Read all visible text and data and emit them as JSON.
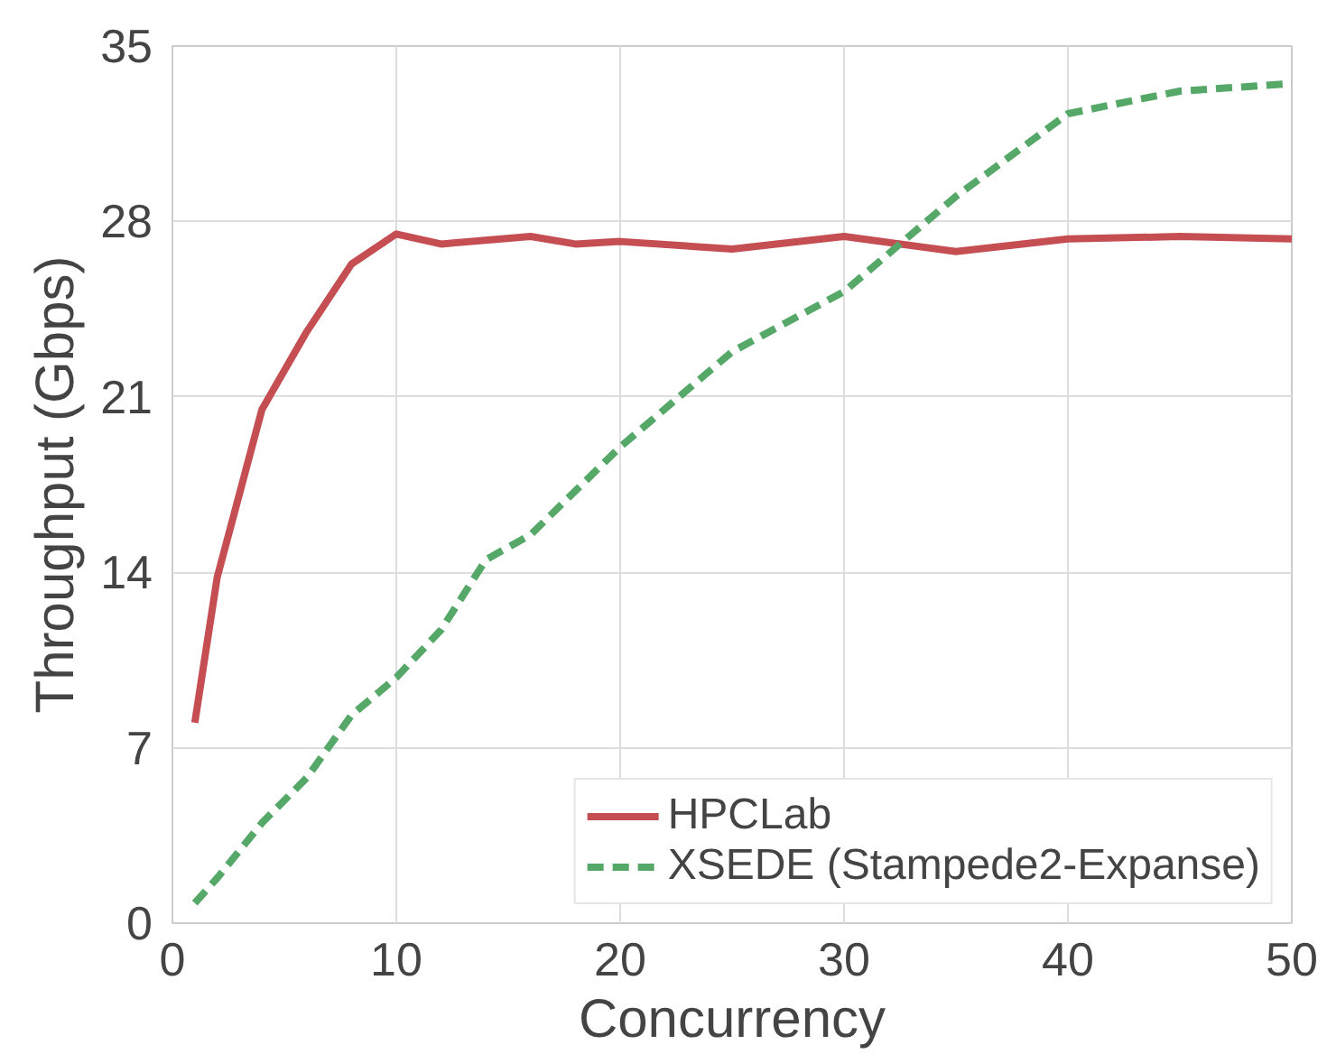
{
  "chart_data": {
    "type": "line",
    "xlabel": "Concurrency",
    "ylabel": "Throughput (Gbps)",
    "xlim": [
      0,
      50
    ],
    "ylim": [
      0,
      35
    ],
    "xticks": [
      0,
      10,
      20,
      30,
      40,
      50
    ],
    "yticks": [
      0,
      7,
      14,
      21,
      28,
      35
    ],
    "grid": true,
    "legend": "bottom right",
    "marker": "none",
    "series": [
      {
        "name": "HPCLab",
        "color": "#c44e52",
        "line_style": "solid",
        "x": [
          1,
          2,
          4,
          6,
          8,
          10,
          12,
          16,
          18,
          20,
          25,
          30,
          35,
          40,
          45,
          50
        ],
        "values": [
          8.0,
          13.8,
          20.5,
          23.6,
          26.3,
          27.5,
          27.1,
          27.4,
          27.1,
          27.2,
          26.9,
          27.4,
          26.8,
          27.3,
          27.4,
          27.3
        ]
      },
      {
        "name": "XSEDE (Stampede2-Expanse)",
        "color": "#55a868",
        "line_style": "dashed",
        "x": [
          1,
          2,
          4,
          6,
          8,
          10,
          12,
          14,
          16,
          20,
          25,
          30,
          35,
          40,
          45,
          50
        ],
        "values": [
          0.8,
          1.8,
          4.0,
          5.8,
          8.3,
          9.8,
          11.7,
          14.5,
          15.5,
          19.0,
          22.8,
          25.2,
          29.0,
          32.3,
          33.2,
          33.5
        ]
      }
    ]
  }
}
